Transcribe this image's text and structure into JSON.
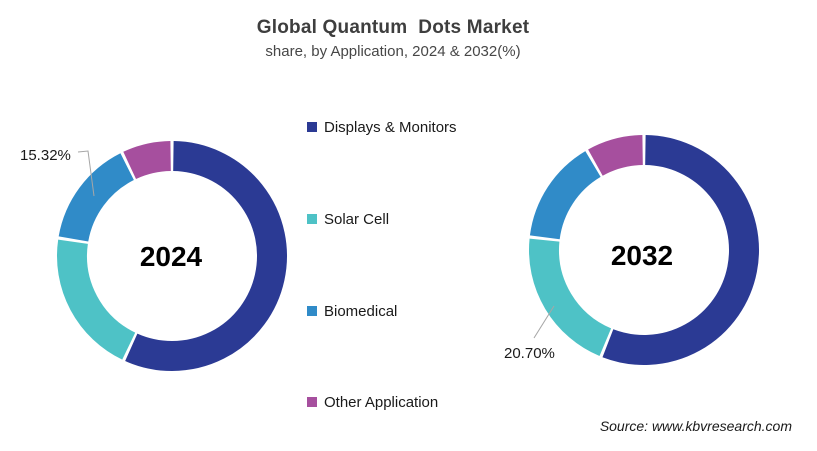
{
  "header": {
    "title": "Global Quantum  Dots Market",
    "subtitle": "share, by Application, 2024 & 2032(%)"
  },
  "legend": {
    "items": [
      {
        "label": "Displays & Monitors",
        "color": "#2B3A94"
      },
      {
        "label": "Solar Cell",
        "color": "#4EC2C6"
      },
      {
        "label": "Biomedical",
        "color": "#308BC8"
      },
      {
        "label": "Other Application",
        "color": "#A64F9E"
      }
    ]
  },
  "callouts": {
    "y2024_biomedical": "15.32%",
    "y2032_solar_cell": "20.70%"
  },
  "source": "Source: www.kbvresearch.com",
  "chart_data": [
    {
      "type": "pie",
      "subtype": "donut",
      "center_label": "2024",
      "categories": [
        "Displays & Monitors",
        "Solar Cell",
        "Biomedical",
        "Other Application"
      ],
      "values": [
        56.9,
        20.6,
        15.32,
        7.18
      ],
      "unit": "%",
      "labeled_values": {
        "Biomedical": "15.32%"
      },
      "start_angle_deg": 0,
      "direction": "clockwise",
      "legend_position": "center-column"
    },
    {
      "type": "pie",
      "subtype": "donut",
      "center_label": "2032",
      "categories": [
        "Displays & Monitors",
        "Solar Cell",
        "Biomedical",
        "Other Application"
      ],
      "values": [
        56.1,
        20.7,
        14.9,
        8.3
      ],
      "unit": "%",
      "labeled_values": {
        "Solar Cell": "20.70%"
      },
      "start_angle_deg": 0,
      "direction": "clockwise",
      "legend_position": "center-column"
    }
  ],
  "colors": {
    "series": [
      "#2B3A94",
      "#4EC2C6",
      "#308BC8",
      "#A64F9E"
    ],
    "title_text": "#3E3E3E",
    "body_text": "#1A1A1A",
    "leader_line": "#A6A6A6",
    "background": "#FFFFFF"
  }
}
